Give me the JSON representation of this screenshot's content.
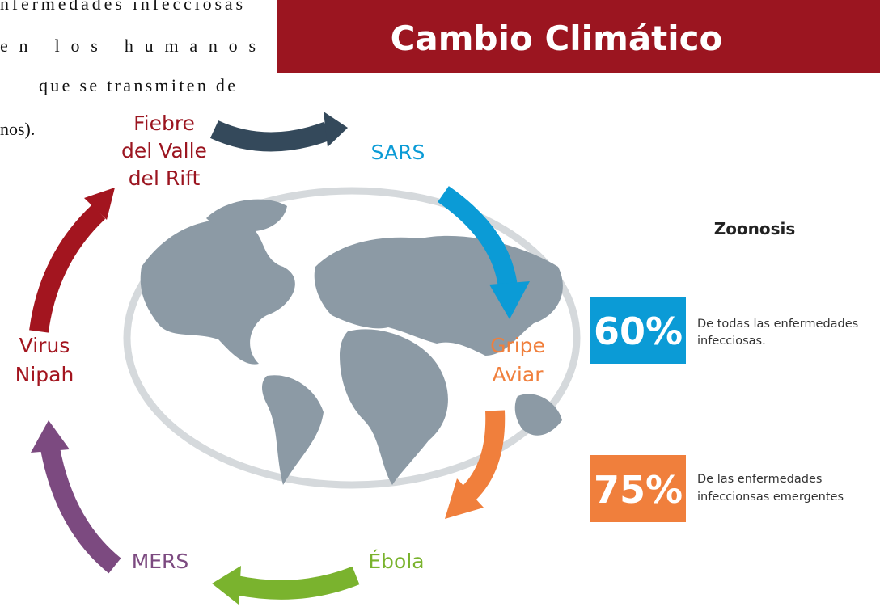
{
  "paragraph": {
    "lines": [
      "nfermedades infecciosas",
      "en los humanos",
      "que se transmiten de",
      "nos)."
    ]
  },
  "header": {
    "title": "Cambio Climático"
  },
  "cycle": {
    "nodes": [
      {
        "label": [
          "Fiebre",
          "del Valle",
          "del Rift"
        ]
      },
      {
        "label": [
          "SARS"
        ]
      },
      {
        "label": [
          "Gripe",
          "Aviar"
        ]
      },
      {
        "label": [
          "Ébola"
        ]
      },
      {
        "label": [
          "MERS"
        ]
      },
      {
        "label": [
          "Virus",
          "Nipah"
        ]
      }
    ]
  },
  "zoonosis": {
    "title": "Zoonosis",
    "stats": [
      {
        "value": "60%",
        "description": [
          "De todas las enfermedades",
          "infecciosas."
        ]
      },
      {
        "value": "75%",
        "description": [
          "De las enfermedades",
          "infeccionsas emergentes"
        ]
      }
    ]
  }
}
